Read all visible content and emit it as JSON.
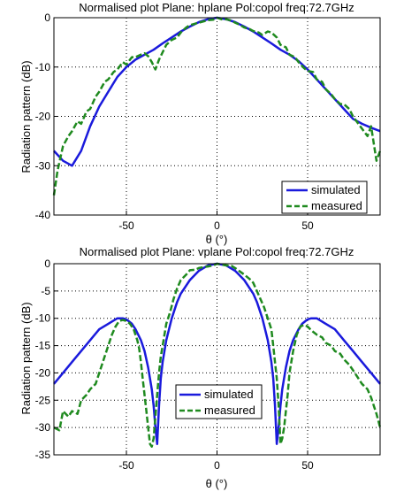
{
  "colors": {
    "simulated": "#1a1adc",
    "measured": "#1f8a1f",
    "grid": "#000000"
  },
  "chart_data": [
    {
      "type": "line",
      "title": "Normalised plot    Plane:  hplane Pol:copol freq:72.7GHz",
      "xlabel": "θ (°)",
      "ylabel": "Radiation pattern (dB)",
      "xlim": [
        -90,
        90
      ],
      "ylim": [
        -40,
        0
      ],
      "xticks": [
        -50,
        0,
        50
      ],
      "yticks": [
        0,
        -10,
        -20,
        -30,
        -40
      ],
      "x_tick_labels": [
        "-50",
        "0",
        "50"
      ],
      "y_tick_labels": [
        "0",
        "-10",
        "-20",
        "-30",
        "-40"
      ],
      "grid": true,
      "legend": "bottom-right",
      "series": [
        {
          "name": "simulated",
          "style": "solid",
          "x": [
            -90,
            -85,
            -80,
            -75,
            -70,
            -65,
            -60,
            -55,
            -50,
            -45,
            -40,
            -35,
            -30,
            -25,
            -20,
            -15,
            -10,
            -5,
            0,
            5,
            10,
            15,
            20,
            25,
            30,
            35,
            40,
            45,
            50,
            55,
            60,
            65,
            70,
            75,
            80,
            85,
            90
          ],
          "y": [
            -27,
            -29,
            -30,
            -27,
            -22,
            -18,
            -15,
            -12,
            -10,
            -8.5,
            -7.5,
            -6.5,
            -5.2,
            -4,
            -2.8,
            -1.8,
            -0.9,
            -0.3,
            0,
            -0.3,
            -0.9,
            -1.8,
            -2.8,
            -4,
            -5.2,
            -6.5,
            -7.5,
            -8.8,
            -10.5,
            -12.5,
            -14.5,
            -16.5,
            -18.5,
            -20.5,
            -21.5,
            -22.3,
            -23
          ]
        },
        {
          "name": "measured",
          "style": "dashed",
          "x": [
            -90,
            -88,
            -85,
            -82,
            -80,
            -77,
            -75,
            -72,
            -70,
            -67,
            -65,
            -62,
            -60,
            -57,
            -55,
            -52,
            -50,
            -47,
            -45,
            -42,
            -40,
            -38,
            -36,
            -34,
            -32,
            -30,
            -28,
            -25,
            -22,
            -20,
            -17,
            -15,
            -12,
            -10,
            -7,
            -5,
            -2,
            0,
            3,
            5,
            8,
            10,
            13,
            15,
            18,
            20,
            23,
            25,
            28,
            30,
            33,
            35,
            38,
            40,
            43,
            45,
            48,
            50,
            53,
            55,
            58,
            60,
            63,
            65,
            68,
            70,
            73,
            75,
            78,
            80,
            83,
            85,
            88,
            90
          ],
          "y": [
            -36,
            -31,
            -26,
            -24,
            -23,
            -21,
            -21.5,
            -19,
            -18.5,
            -16,
            -15,
            -13,
            -12.5,
            -11,
            -10.5,
            -9,
            -9.5,
            -8,
            -8,
            -7.5,
            -7.2,
            -7.8,
            -9,
            -10.5,
            -8.5,
            -7,
            -5.5,
            -4.5,
            -4,
            -3,
            -2,
            -1.5,
            -1.2,
            -1,
            -0.7,
            -0.5,
            -0.4,
            0,
            -0.4,
            -0.3,
            -0.6,
            -1,
            -1.5,
            -2,
            -2.3,
            -2.7,
            -3,
            -3.5,
            -2.8,
            -3,
            -4,
            -5.5,
            -6,
            -7.5,
            -8,
            -9,
            -10.2,
            -10.8,
            -11,
            -12.5,
            -13,
            -14.5,
            -15.5,
            -16.5,
            -17.5,
            -17.5,
            -18.5,
            -20,
            -21.5,
            -22.5,
            -24,
            -22,
            -29,
            -27
          ]
        }
      ]
    },
    {
      "type": "line",
      "title": "Normalised plot    Plane:  vplane Pol:copol freq:72.7GHz",
      "xlabel": "θ (°)",
      "ylabel": "Radiation pattern (dB)",
      "xlim": [
        -90,
        90
      ],
      "ylim": [
        -35,
        0
      ],
      "xticks": [
        -50,
        0,
        50
      ],
      "yticks": [
        0,
        -5,
        -10,
        -15,
        -20,
        -25,
        -30,
        -35
      ],
      "x_tick_labels": [
        "-50",
        "0",
        "50"
      ],
      "y_tick_labels": [
        "0",
        "-5",
        "-10",
        "-15",
        "-20",
        "-25",
        "-30",
        "-35"
      ],
      "grid": true,
      "legend": "bottom-left",
      "series": [
        {
          "name": "simulated",
          "style": "solid",
          "x": [
            -90,
            -85,
            -80,
            -75,
            -70,
            -65,
            -60,
            -55,
            -52,
            -50,
            -47,
            -45,
            -42,
            -40,
            -38,
            -36,
            -35,
            -34,
            -33,
            -32,
            -31,
            -30,
            -28,
            -25,
            -22,
            -20,
            -15,
            -10,
            -5,
            0,
            5,
            10,
            15,
            20,
            22,
            25,
            28,
            30,
            31,
            32,
            33,
            34,
            35,
            36,
            38,
            40,
            42,
            45,
            47,
            50,
            52,
            55,
            60,
            65,
            70,
            75,
            80,
            85,
            90
          ],
          "y": [
            -22,
            -20,
            -18,
            -16,
            -14,
            -12,
            -11,
            -10,
            -10,
            -10.2,
            -11,
            -12,
            -14,
            -16,
            -19,
            -23,
            -26,
            -30,
            -33,
            -26,
            -21,
            -18,
            -14,
            -10,
            -7,
            -5.5,
            -3,
            -1.3,
            -0.3,
            0,
            -0.3,
            -1.3,
            -3,
            -5.5,
            -7,
            -10,
            -14,
            -18,
            -21,
            -26,
            -33,
            -30,
            -26,
            -23,
            -19,
            -16,
            -14,
            -12,
            -11,
            -10.2,
            -10,
            -10,
            -11,
            -12,
            -14,
            -16,
            -18,
            -20,
            -22
          ]
        },
        {
          "name": "measured",
          "style": "dashed",
          "x": [
            -90,
            -87,
            -85,
            -82,
            -80,
            -77,
            -75,
            -72,
            -70,
            -67,
            -65,
            -62,
            -60,
            -58,
            -56,
            -54,
            -52,
            -50,
            -48,
            -46,
            -44,
            -43,
            -42,
            -41,
            -40,
            -39,
            -38,
            -37,
            -36,
            -35,
            -34,
            -33,
            -32,
            -31,
            -30,
            -28,
            -26,
            -24,
            -22,
            -20,
            -17,
            -15,
            -12,
            -10,
            -7,
            -5,
            -2,
            0,
            3,
            5,
            8,
            10,
            13,
            15,
            18,
            20,
            22,
            24,
            26,
            28,
            30,
            31,
            32,
            33,
            34,
            35,
            36,
            37,
            38,
            39,
            40,
            42,
            44,
            46,
            48,
            50,
            52,
            55,
            58,
            60,
            63,
            65,
            68,
            70,
            73,
            75,
            78,
            80,
            83,
            85,
            88,
            90
          ],
          "y": [
            -30,
            -30.5,
            -27,
            -28,
            -27,
            -27.5,
            -25,
            -24,
            -23,
            -22,
            -20,
            -17,
            -15,
            -13,
            -11.5,
            -10.5,
            -10.3,
            -10.5,
            -11,
            -12,
            -14,
            -15.5,
            -18,
            -21,
            -24,
            -27,
            -30,
            -33,
            -33.5,
            -32,
            -28,
            -24,
            -20,
            -17,
            -15,
            -11,
            -9,
            -6.5,
            -4.5,
            -3,
            -2,
            -1.2,
            -1.1,
            -0.8,
            -0.6,
            -0.5,
            -0.3,
            0,
            -0.2,
            -0.3,
            -0.4,
            -0.8,
            -1.5,
            -2,
            -2.8,
            -3.5,
            -5,
            -6.5,
            -8,
            -10,
            -12,
            -15,
            -18,
            -21,
            -26,
            -33,
            -32,
            -30,
            -27,
            -24,
            -20,
            -16,
            -13,
            -11.5,
            -11.2,
            -11.5,
            -12.2,
            -13,
            -13.5,
            -14.5,
            -15,
            -16,
            -16.5,
            -17.5,
            -18.5,
            -19.5,
            -21,
            -22,
            -23,
            -24.5,
            -27.5,
            -30
          ]
        }
      ]
    }
  ]
}
